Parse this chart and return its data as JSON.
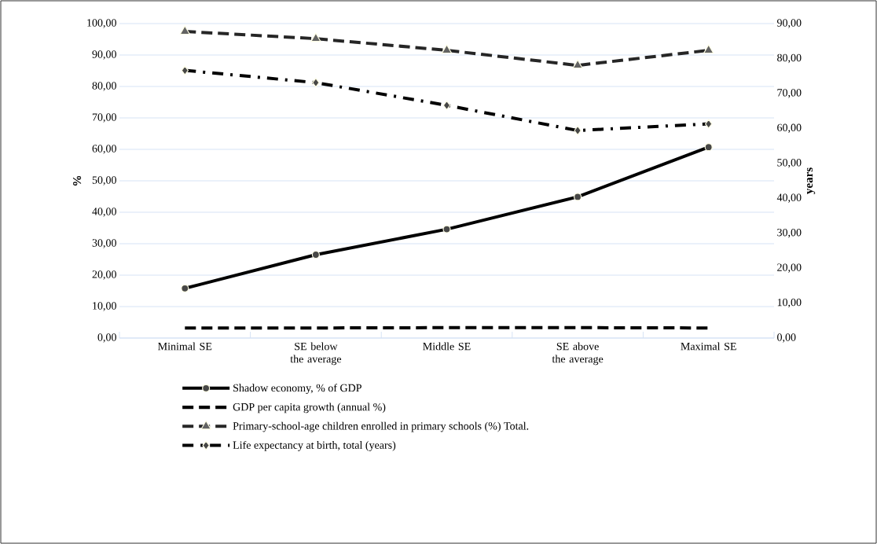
{
  "chart_data": {
    "type": "line",
    "categories": [
      "Minimal SE",
      "SE below the average",
      "Middle SE",
      "SE above the average",
      "Maximal SE"
    ],
    "ylabel": "%",
    "y2label": "years",
    "ylim": [
      0,
      100
    ],
    "yticks": [
      {
        "value": 0,
        "label": "0,00"
      },
      {
        "value": 10,
        "label": "10,00"
      },
      {
        "value": 20,
        "label": "20,00"
      },
      {
        "value": 30,
        "label": "30,00"
      },
      {
        "value": 40,
        "label": "40,00"
      },
      {
        "value": 50,
        "label": "50,00"
      },
      {
        "value": 60,
        "label": "60,00"
      },
      {
        "value": 70,
        "label": "70,00"
      },
      {
        "value": 80,
        "label": "80,00"
      },
      {
        "value": 90,
        "label": "90,00"
      },
      {
        "value": 100,
        "label": "100,00"
      }
    ],
    "y2lim": [
      0,
      90
    ],
    "y2ticks": [
      {
        "value": 0,
        "label": "0,00"
      },
      {
        "value": 10,
        "label": "10,00"
      },
      {
        "value": 20,
        "label": "20,00"
      },
      {
        "value": 30,
        "label": "30,00"
      },
      {
        "value": 40,
        "label": "40,00"
      },
      {
        "value": 50,
        "label": "50,00"
      },
      {
        "value": 60,
        "label": "60,00"
      },
      {
        "value": 70,
        "label": "70,00"
      },
      {
        "value": 80,
        "label": "80,00"
      },
      {
        "value": 90,
        "label": "90,00"
      }
    ],
    "grid": "y",
    "legend": "bottom",
    "series": [
      {
        "name": "Shadow economy, % of GDP",
        "color": "#000000",
        "marker": "circle",
        "line_style": "solid",
        "values": [
          15.8,
          26.5,
          34.6,
          44.9,
          60.7
        ]
      },
      {
        "name": "GDP per capita growth (annual %)",
        "color": "#000000",
        "marker": "none",
        "line_style": "dashed",
        "values": [
          3.2,
          3.2,
          3.3,
          3.3,
          3.2
        ]
      },
      {
        "name": "Primary-school-age children enrolled in primary schools (%) Total.",
        "color": "#262626",
        "marker": "triangle",
        "line_style": "dashed",
        "values": [
          97.5,
          95.2,
          91.5,
          86.7,
          91.5
        ]
      },
      {
        "name": "Life expectancy at birth, total (years)",
        "color": "#000000",
        "marker": "diamond",
        "line_style": "dotted",
        "axis": "y2",
        "values": [
          76.6,
          73.1,
          66.6,
          59.4,
          61.3
        ]
      }
    ]
  }
}
